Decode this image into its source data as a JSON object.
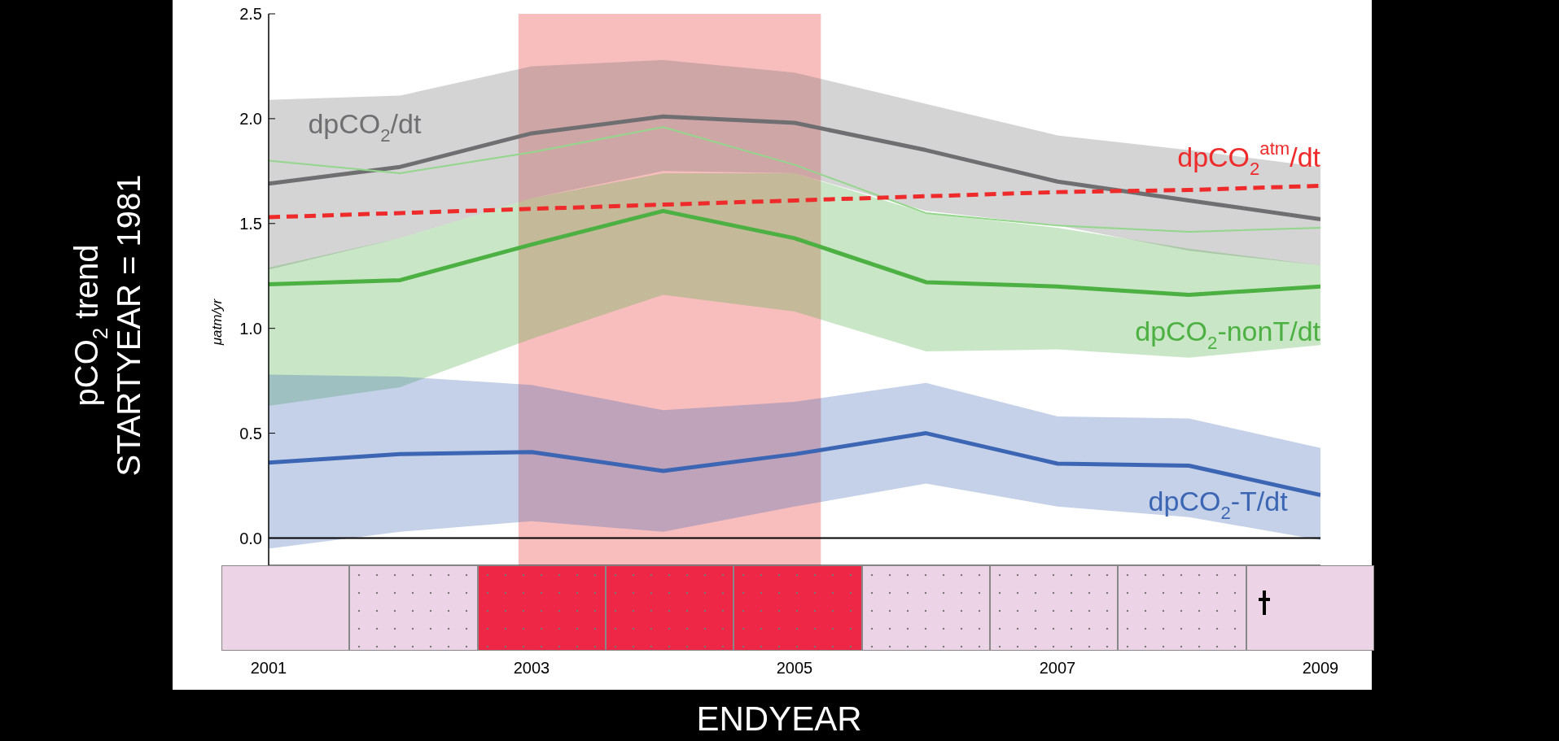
{
  "chart_data": {
    "type": "line",
    "xlabel": "ENDYEAR",
    "ylabel": "μatm/yr",
    "annotations": [
      "pCO$_{2}$ trend",
      "STARTYEAR = 1981"
    ],
    "x": [
      2001,
      2002,
      2003,
      2004,
      2005,
      2006,
      2007,
      2008,
      2009
    ],
    "xlim": [
      2001,
      2009
    ],
    "xticks": [
      2001,
      2003,
      2005,
      2007,
      2009
    ],
    "ylim": [
      -0.13,
      2.5
    ],
    "yticks": [
      {
        "value": 0,
        "label": "0.0"
      },
      {
        "value": 0.5,
        "label": "0.5"
      },
      {
        "value": 1,
        "label": "1.0"
      },
      {
        "value": 1.5,
        "label": "1.5"
      },
      {
        "value": 2,
        "label": "2.0"
      },
      {
        "value": 2.5,
        "label": "2.5"
      }
    ],
    "marker": "none",
    "bands": [
      {
        "axis": "x",
        "from": 2002.9,
        "to": 2005.2,
        "color": "#f6a8a8"
      }
    ],
    "ref_lines": [
      {
        "axis": "y",
        "value": 0,
        "color": "#000000"
      }
    ],
    "series": [
      {
        "name": "dpCO$_{2}$/dt",
        "color": "#6f6f72",
        "values": [
          1.69,
          1.77,
          1.93,
          2.01,
          1.98,
          1.85,
          1.7,
          1.61,
          1.52
        ],
        "lower": [
          1.28,
          1.43,
          1.62,
          1.75,
          1.74,
          1.56,
          1.49,
          1.37,
          1.3
        ],
        "upper": [
          2.09,
          2.11,
          2.25,
          2.28,
          2.22,
          2.07,
          1.92,
          1.85,
          1.77
        ]
      },
      {
        "color": "#93d68c",
        "values": [
          1.8,
          1.74,
          1.84,
          1.96,
          1.78,
          1.55,
          1.49,
          1.46,
          1.48
        ]
      },
      {
        "name": "dpCO$_{2}$-nonT/dt",
        "color": "#4cb043",
        "values": [
          1.21,
          1.23,
          1.4,
          1.56,
          1.43,
          1.22,
          1.2,
          1.16,
          1.2
        ],
        "lower": [
          0.63,
          0.72,
          0.95,
          1.16,
          1.08,
          0.89,
          0.9,
          0.86,
          0.92
        ],
        "upper": [
          1.29,
          1.43,
          1.62,
          1.74,
          1.74,
          1.55,
          1.48,
          1.38,
          1.3
        ]
      },
      {
        "name": "dpCO$_{2}$-T/dt",
        "color": "#3c66b4",
        "values": [
          0.36,
          0.4,
          0.41,
          0.32,
          0.4,
          0.5,
          0.355,
          0.345,
          0.205
        ],
        "lower": [
          -0.05,
          0.03,
          0.08,
          0.03,
          0.15,
          0.26,
          0.15,
          0.1,
          -0.01
        ],
        "upper": [
          0.78,
          0.77,
          0.73,
          0.61,
          0.65,
          0.74,
          0.58,
          0.57,
          0.43
        ]
      },
      {
        "name": "dpCO$_{2}$$^{atm}$/dt",
        "color": "#ee2a2a",
        "line_style": "dashed",
        "values": [
          1.53,
          1.55,
          1.57,
          1.59,
          1.61,
          1.63,
          1.65,
          1.66,
          1.68
        ]
      }
    ]
  }
}
